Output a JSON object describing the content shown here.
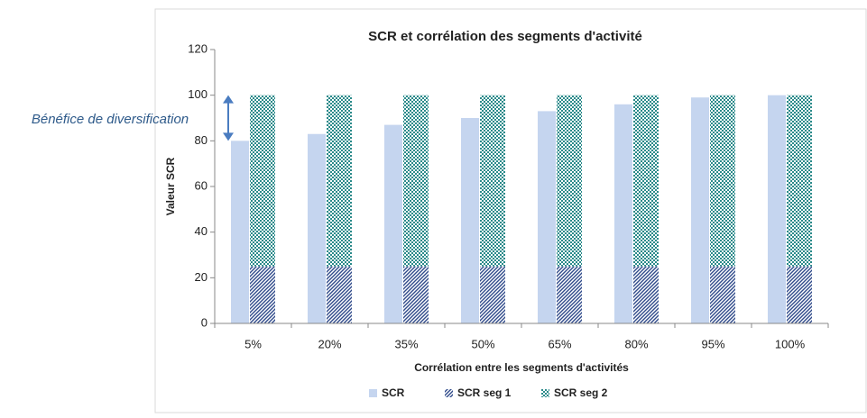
{
  "chart_data": {
    "type": "bar",
    "title": "SCR et corrélation des segments d'activité",
    "x_label": "Corrélation entre les segments d'activités",
    "y_label": "Valeur SCR",
    "annotation": "Bénéfice de diversification",
    "categories": [
      "5%",
      "20%",
      "35%",
      "50%",
      "65%",
      "80%",
      "95%",
      "100%"
    ],
    "series": [
      {
        "name": "SCR",
        "color": "#c5d5ef",
        "pattern": "solid",
        "values": [
          80,
          83,
          87,
          90,
          93,
          96,
          99,
          100
        ]
      },
      {
        "name": "SCR seg 1",
        "color": "#2f4a8a",
        "pattern": "diagonal",
        "stack": "total",
        "values": [
          25,
          25,
          25,
          25,
          25,
          25,
          25,
          25
        ]
      },
      {
        "name": "SCR seg 2",
        "color": "#2a8a8a",
        "pattern": "checker",
        "stack": "total",
        "values": [
          75,
          75,
          75,
          75,
          75,
          75,
          75,
          75
        ]
      }
    ],
    "ylim": [
      0,
      120
    ],
    "yticks": [
      0,
      20,
      40,
      60,
      80,
      100,
      120
    ],
    "grid": false,
    "legend": "bottom"
  }
}
